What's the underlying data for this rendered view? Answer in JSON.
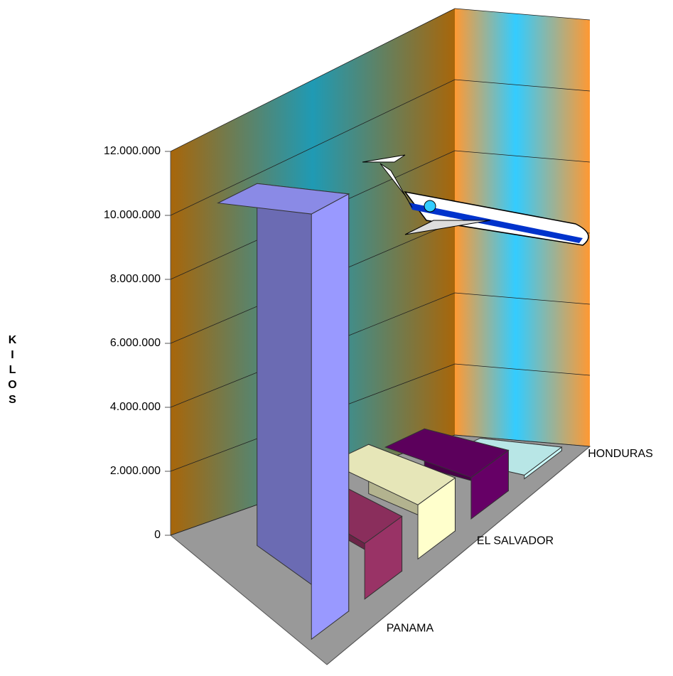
{
  "chart_data": {
    "type": "bar3d",
    "y_label": "KILOS",
    "categories": [
      "PANAMA",
      null,
      "EL SALVADOR",
      null,
      "HONDURAS"
    ],
    "values": [
      10400000,
      1400000,
      1400000,
      1100000,
      100000
    ],
    "colors": [
      "#9999ff",
      "#993366",
      "#ffffcc",
      "#660066",
      "#ccffff"
    ],
    "ylim": [
      0,
      12000000
    ],
    "yticks": [
      {
        "value": 0,
        "label": "0"
      },
      {
        "value": 2000000,
        "label": "2.000.000"
      },
      {
        "value": 4000000,
        "label": "4.000.000"
      },
      {
        "value": 6000000,
        "label": "6.000.000"
      },
      {
        "value": 8000000,
        "label": "8.000.000"
      },
      {
        "value": 10000000,
        "label": "10.000.000"
      },
      {
        "value": 12000000,
        "label": "12.000.000"
      }
    ],
    "grid": true
  }
}
